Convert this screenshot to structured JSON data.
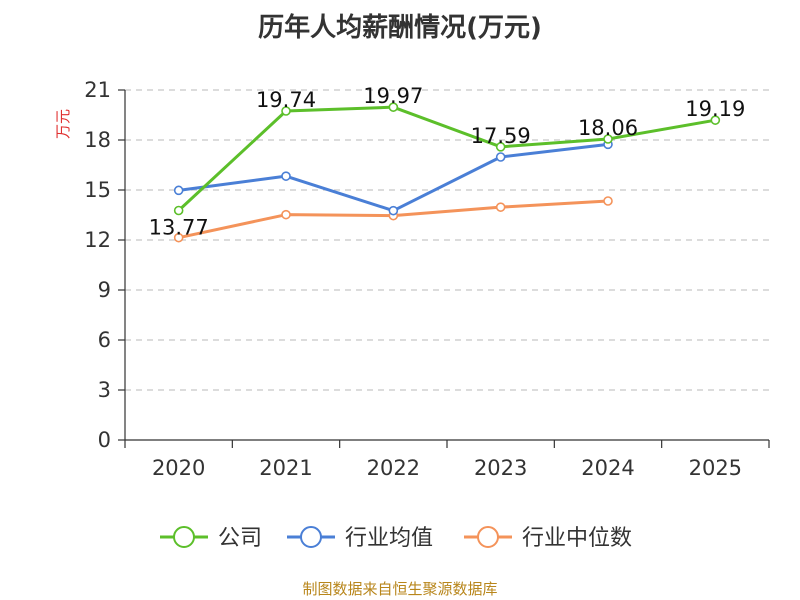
{
  "chart_data": {
    "type": "line",
    "title": "历年人均薪酬情况(万元)",
    "ylabel": "万元",
    "xlabel": "",
    "categories": [
      "2020",
      "2021",
      "2022",
      "2023",
      "2024",
      "2025"
    ],
    "ylim": [
      0,
      21
    ],
    "yticks": [
      0,
      3,
      6,
      9,
      12,
      15,
      18,
      21
    ],
    "grid": true,
    "legend_position": "bottom",
    "series": [
      {
        "name": "公司",
        "color": "#5cbf2a",
        "values": [
          13.77,
          19.74,
          19.97,
          17.59,
          18.06,
          19.19
        ],
        "labels": [
          "13.77",
          "19.74",
          "19.97",
          "17.59",
          "18.06",
          "19.19"
        ]
      },
      {
        "name": "行业均值",
        "color": "#4a7fd6",
        "values": [
          14.98,
          15.83,
          13.76,
          16.98,
          17.74,
          null
        ]
      },
      {
        "name": "行业中位数",
        "color": "#f4935a",
        "values": [
          12.14,
          13.52,
          13.46,
          13.97,
          14.34,
          null
        ]
      }
    ]
  },
  "footer": {
    "source": "制图数据来自恒生聚源数据库"
  }
}
